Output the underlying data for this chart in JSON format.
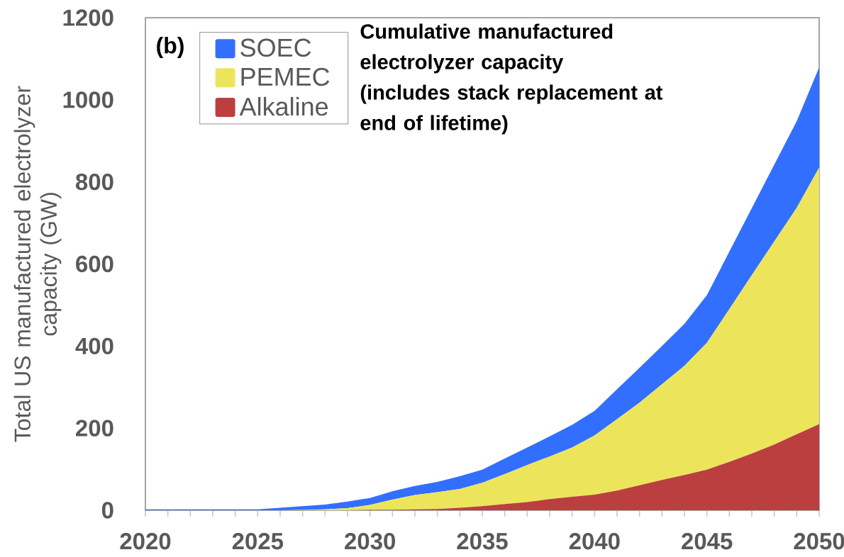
{
  "chart_data": {
    "type": "area",
    "stacked": true,
    "ylabel": "Total US manufactured electrolyzer capacity (GW)",
    "annotations": [
      "(b)",
      "Cumulative manufactured electrolyzer capacity (includes stack replacement at end of lifetime)"
    ],
    "x": [
      2020,
      2021,
      2022,
      2023,
      2024,
      2025,
      2026,
      2027,
      2028,
      2029,
      2030,
      2031,
      2032,
      2033,
      2034,
      2035,
      2036,
      2037,
      2038,
      2039,
      2040,
      2041,
      2042,
      2043,
      2044,
      2045,
      2046,
      2047,
      2048,
      2049,
      2050
    ],
    "xlim": [
      2020,
      2050
    ],
    "xticks": [
      2020,
      {
        "value": 2021,
        "label": null
      },
      {
        "value": 2022,
        "label": null
      },
      {
        "value": 2023,
        "label": null
      },
      {
        "value": 2024,
        "label": null
      },
      2025,
      {
        "value": 2026,
        "label": null
      },
      {
        "value": 2027,
        "label": null
      },
      {
        "value": 2028,
        "label": null
      },
      {
        "value": 2029,
        "label": null
      },
      2030,
      {
        "value": 2031,
        "label": null
      },
      {
        "value": 2032,
        "label": null
      },
      {
        "value": 2033,
        "label": null
      },
      {
        "value": 2034,
        "label": null
      },
      2035,
      {
        "value": 2036,
        "label": null
      },
      {
        "value": 2037,
        "label": null
      },
      {
        "value": 2038,
        "label": null
      },
      {
        "value": 2039,
        "label": null
      },
      2040,
      {
        "value": 2041,
        "label": null
      },
      {
        "value": 2042,
        "label": null
      },
      {
        "value": 2043,
        "label": null
      },
      {
        "value": 2044,
        "label": null
      },
      2045,
      {
        "value": 2046,
        "label": null
      },
      {
        "value": 2047,
        "label": null
      },
      {
        "value": 2048,
        "label": null
      },
      {
        "value": 2049,
        "label": null
      },
      2050
    ],
    "ylim": [
      0,
      1200
    ],
    "yticks": [
      0,
      200,
      400,
      600,
      800,
      1000,
      1200
    ],
    "legend": "top left",
    "series": [
      {
        "name": "Alkaline",
        "color": "#bc3f40",
        "values": [
          0,
          0,
          0,
          0,
          0,
          0,
          0,
          0,
          0,
          0,
          1,
          1,
          2,
          3,
          6,
          10,
          15,
          20,
          27,
          33,
          38,
          48,
          61,
          74,
          86,
          99,
          118,
          138,
          160,
          185,
          210
        ]
      },
      {
        "name": "PEMEC",
        "color": "#ece55b",
        "values": [
          0,
          0,
          0,
          0,
          0,
          0,
          0,
          1,
          2,
          5,
          12,
          25,
          35,
          41,
          46,
          57,
          73,
          90,
          104,
          120,
          144,
          174,
          201,
          233,
          266,
          309,
          372,
          435,
          495,
          552,
          625
        ]
      },
      {
        "name": "SOEC",
        "color": "#336fff",
        "values": [
          2,
          2,
          2,
          2,
          2,
          2,
          6,
          9,
          12,
          16,
          17,
          20,
          22,
          25,
          31,
          32,
          38,
          43,
          49,
          55,
          60,
          73,
          85,
          93,
          102,
          116,
          140,
          163,
          187,
          211,
          244
        ]
      }
    ]
  }
}
